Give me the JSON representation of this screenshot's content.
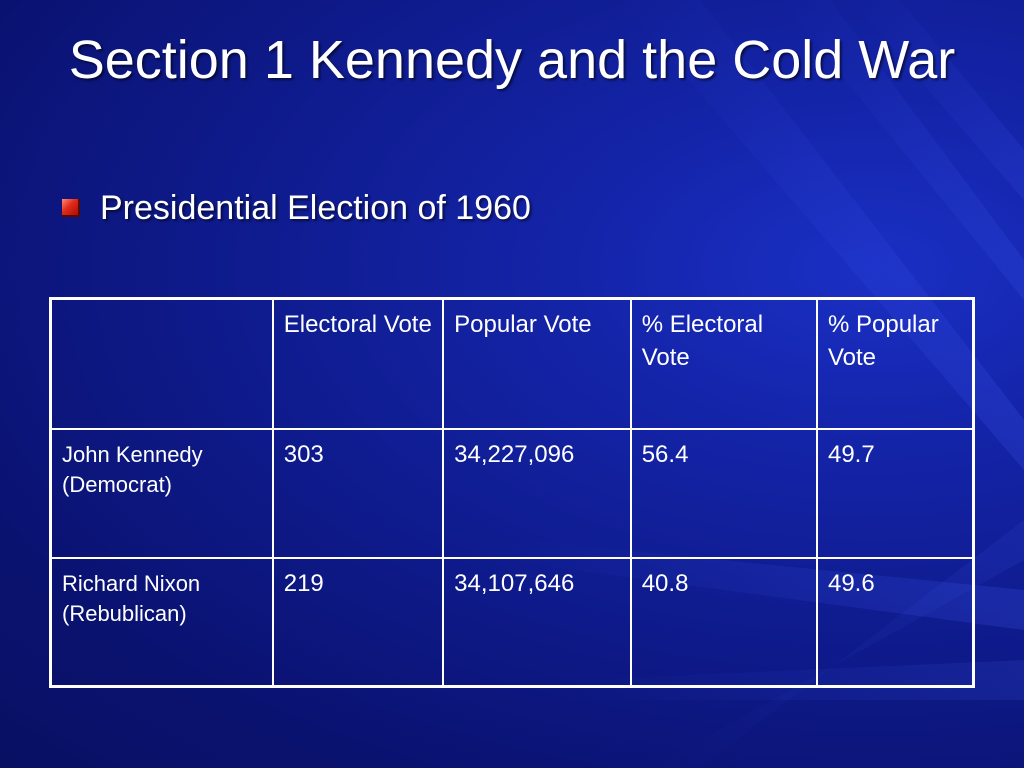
{
  "slide": {
    "title": "Section 1 Kennedy and the Cold War",
    "bullet": "Presidential Election of 1960",
    "colors": {
      "background": "#0e1a8a",
      "text": "#ffffff",
      "bullet_accent": "#e02a1a"
    },
    "bullet_icon": "red-square-bullet-icon"
  },
  "table": {
    "headers": [
      "",
      "Electoral Vote",
      "Popular Vote",
      "% Electoral Vote",
      "% Popular Vote"
    ],
    "rows": [
      {
        "label_line1": "John Kennedy",
        "label_line2": "(Democrat)",
        "cells": [
          "303",
          "34,227,096",
          "56.4",
          "49.7"
        ]
      },
      {
        "label_line1": "Richard Nixon",
        "label_line2": "(Rebublican)",
        "cells": [
          "219",
          "34,107,646",
          "40.8",
          "49.6"
        ]
      }
    ]
  }
}
